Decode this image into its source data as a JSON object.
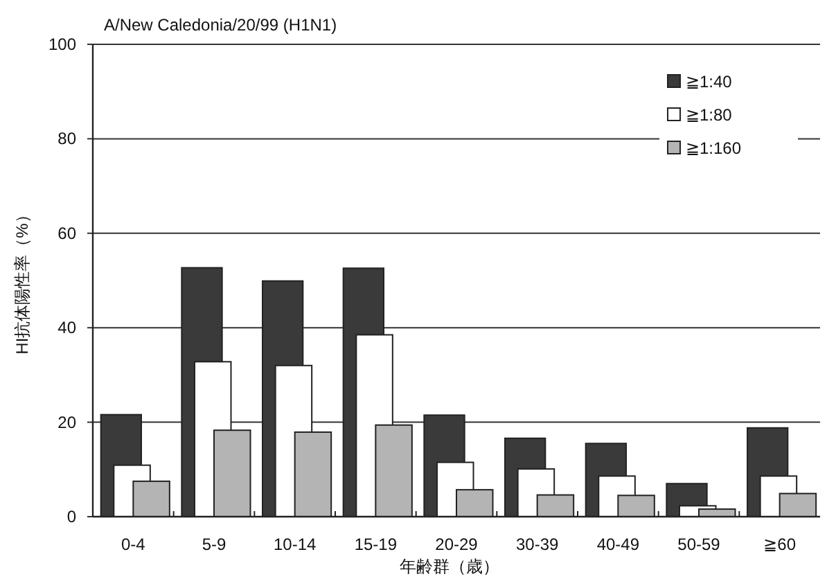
{
  "chart_data": {
    "type": "bar",
    "title": "A/New Caledonia/20/99 (H1N1)",
    "xlabel": "年齢群（歳）",
    "ylabel": "HI抗体陽性率（%）",
    "categories": [
      "0-4",
      "5-9",
      "10-14",
      "15-19",
      "20-29",
      "30-39",
      "40-49",
      "50-59",
      "≧60"
    ],
    "series": [
      {
        "name": "≧1:40",
        "color": "#3a3a3a",
        "values": [
          21.6,
          52.7,
          49.9,
          52.6,
          21.5,
          16.6,
          15.5,
          7.0,
          18.8
        ]
      },
      {
        "name": "≧1:80",
        "color": "#ffffff",
        "values": [
          10.9,
          32.8,
          32.0,
          38.5,
          11.5,
          10.1,
          8.6,
          2.3,
          8.6
        ]
      },
      {
        "name": "≧1:160",
        "color": "#b4b4b4",
        "values": [
          7.5,
          18.3,
          17.9,
          19.4,
          5.7,
          4.6,
          4.5,
          1.6,
          4.9
        ]
      }
    ],
    "ylim": [
      0,
      100
    ],
    "yticks": [
      0,
      20,
      40,
      60,
      80,
      100
    ],
    "grid": "y",
    "legend": "top right"
  }
}
